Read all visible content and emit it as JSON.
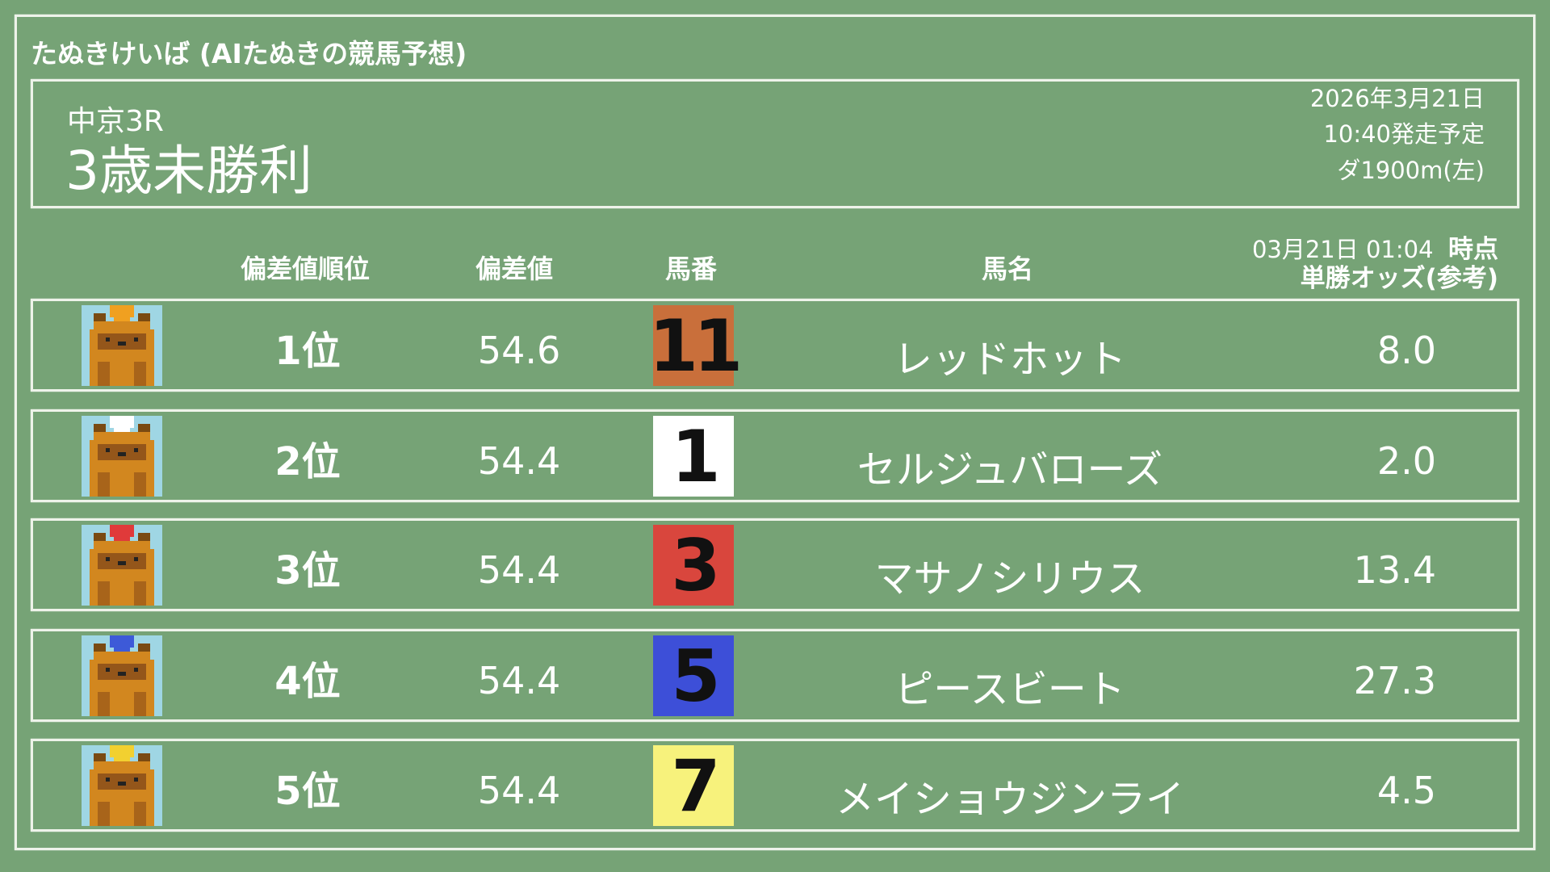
{
  "site_title": "たぬきけいば (AIたぬきの競馬予想)",
  "race": {
    "venue": "中京3R",
    "name": "3歳未勝利",
    "date": "2026年3月21日",
    "start": "10:40発走予定",
    "course": "ダ1900m(左)"
  },
  "headers": {
    "rank": "偏差値順位",
    "score": "偏差値",
    "number": "馬番",
    "name": "馬名",
    "odds_time": "03月21日 01:04",
    "odds_time_suffix": "時点",
    "odds": "単勝オッズ(参考)"
  },
  "rows": [
    {
      "rank": "1位",
      "score": "54.6",
      "number": "11",
      "name": "レッドホット",
      "odds": "8.0",
      "box_color": "#c96f3b",
      "cap_color": "#f0a020"
    },
    {
      "rank": "2位",
      "score": "54.4",
      "number": "1",
      "name": "セルジュバローズ",
      "odds": "2.0",
      "box_color": "#ffffff",
      "cap_color": "#ffffff"
    },
    {
      "rank": "3位",
      "score": "54.4",
      "number": "3",
      "name": "マサノシリウス",
      "odds": "13.4",
      "box_color": "#d9463d",
      "cap_color": "#e03a3a"
    },
    {
      "rank": "4位",
      "score": "54.4",
      "number": "5",
      "name": "ピースビート",
      "odds": "27.3",
      "box_color": "#3d4fd8",
      "cap_color": "#3d5ad8"
    },
    {
      "rank": "5位",
      "score": "54.4",
      "number": "7",
      "name": "メイショウジンライ",
      "odds": "4.5",
      "box_color": "#f7f27c",
      "cap_color": "#f2d030"
    }
  ]
}
